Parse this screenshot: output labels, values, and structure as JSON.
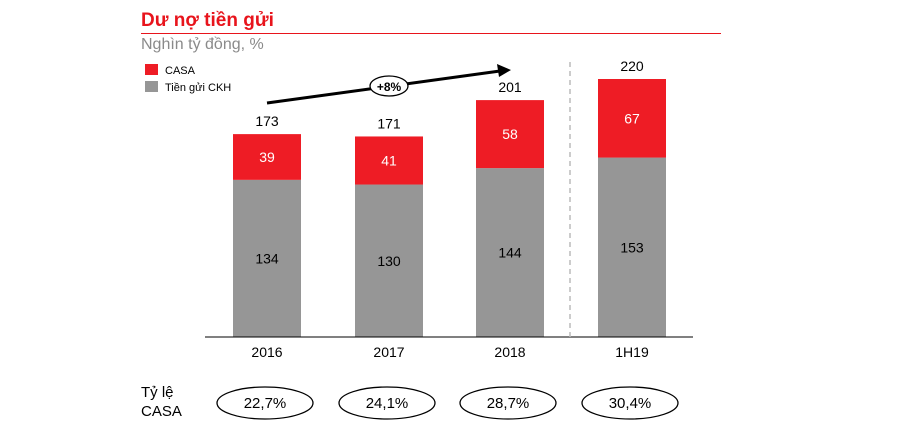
{
  "title": "Dư nợ tiền gửi",
  "subtitle": "Nghìn tỷ đồng, %",
  "chart_data": {
    "type": "bar",
    "stacked": true,
    "categories": [
      "2016",
      "2017",
      "2018",
      "1H19"
    ],
    "series": [
      {
        "name": "Tiền gửi CKH",
        "color": "#969696",
        "values": [
          134,
          130,
          144,
          153
        ]
      },
      {
        "name": "CASA",
        "color": "#ee1c25",
        "values": [
          39,
          41,
          58,
          67
        ]
      }
    ],
    "totals": [
      173,
      171,
      201,
      220
    ],
    "legend_position": "top-left",
    "growth_annotation": "+8%",
    "ratio_label": [
      "Tỷ lệ",
      "CASA"
    ],
    "ratios": [
      "22,7%",
      "24,1%",
      "28,7%",
      "30,4%"
    ]
  }
}
